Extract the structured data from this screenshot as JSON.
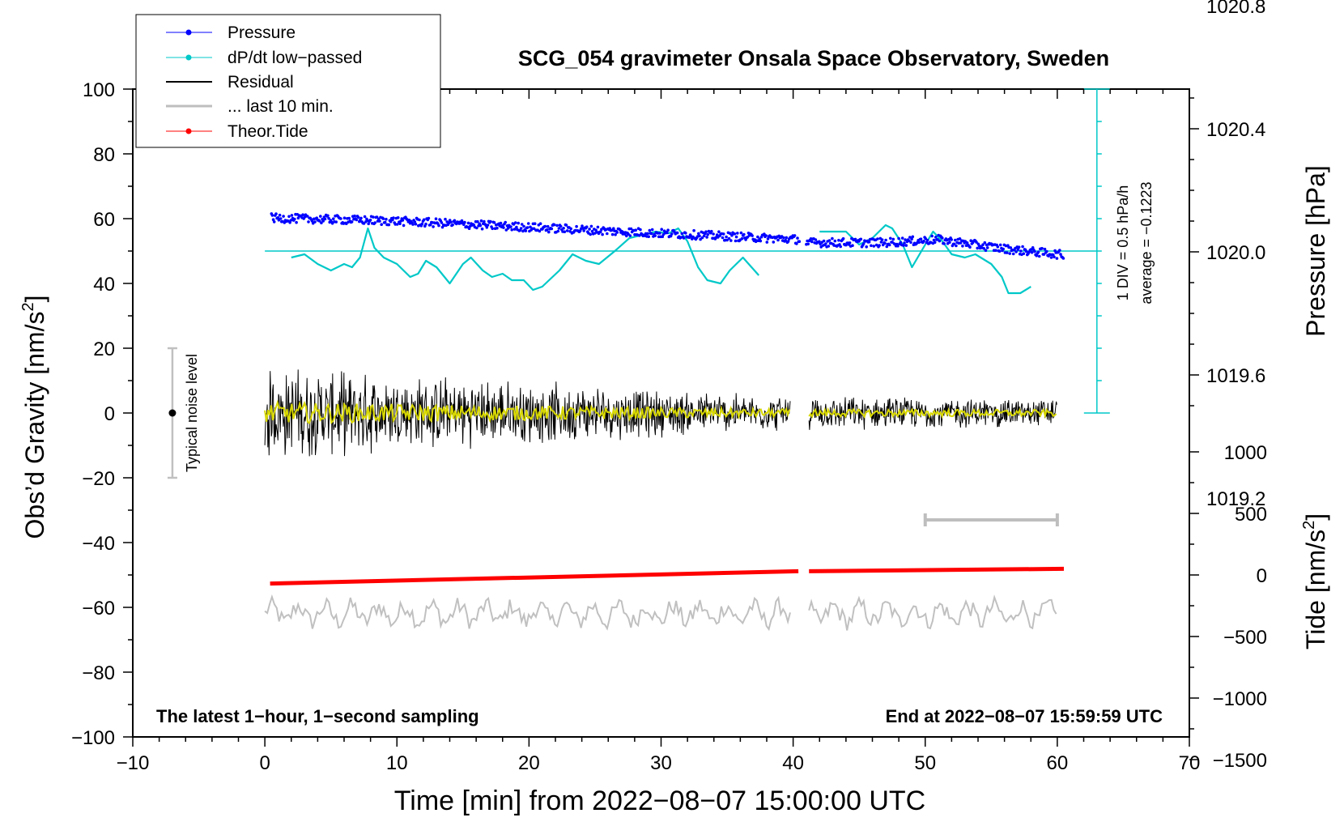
{
  "chart_data": {
    "type": "line",
    "title": "SCG_054 gravimeter Onsala Space Observatory, Sweden",
    "xlabel": "Time [min] from 2022−08−07 15:00:00 UTC",
    "ylabel_main": "Obs’d Gravity [nm/s",
    "ylabel_sup": "2",
    "ylabel_close": "]",
    "ylabel_pressure": "Pressure [hPa]",
    "ylabel_tide_main": "Tide [nm/s",
    "ylabel_tide_sup": "2",
    "ylabel_tide_close": "]",
    "xlim": [
      -10,
      70
    ],
    "ylim": [
      -100,
      100
    ],
    "pressure_range": [
      1019.2,
      1020.8
    ],
    "tide_range": [
      -1500,
      1000
    ],
    "x_ticks": [
      "−10",
      "0",
      "10",
      "20",
      "30",
      "40",
      "50",
      "60",
      "70"
    ],
    "y_ticks": [
      "−100",
      "−80",
      "−60",
      "−40",
      "−20",
      "0",
      "20",
      "40",
      "60",
      "80",
      "100"
    ],
    "pressure_ticks": [
      "1019.2",
      "1019.6",
      "1020.0",
      "1020.4",
      "1020.8"
    ],
    "tide_ticks": [
      "−1500",
      "−1000",
      "−500",
      "0",
      "500",
      "1000"
    ],
    "legend": [
      {
        "label": "Pressure",
        "color": "#0000ff",
        "marker": true
      },
      {
        "label": "dP/dt low−passed",
        "color": "#00c8c8",
        "marker": true
      },
      {
        "label": "Residual",
        "color": "#000000",
        "marker": false
      },
      {
        "label": "... last 10 min.",
        "color": "#bebebe",
        "marker": false
      },
      {
        "label": "Theor.Tide",
        "color": "#ff0000",
        "marker": true
      }
    ],
    "annotations": {
      "bottom_left": "The latest 1−hour, 1−second sampling",
      "bottom_right": "End at 2022−08−07 15:59:59 UTC",
      "scale_div": "1 DIV = 0.5 hPa/h",
      "scale_avg": "average = −0.1223",
      "noise": "Typical noise level"
    },
    "noise_bar": {
      "x": -7,
      "y": 0,
      "half_range": 20
    },
    "last10_bar": [
      50,
      60
    ],
    "series": [
      {
        "name": "Pressure",
        "axis": "pressure",
        "segments": [
          {
            "x": [
              0.5,
              10,
              20,
              30,
              40.5
            ],
            "y": [
              1020.11,
              1020.1,
              1020.08,
              1020.06,
              1020.04
            ]
          },
          {
            "x": [
              41,
              47,
              51,
              56,
              60.5
            ],
            "y": [
              1020.03,
              1020.03,
              1020.04,
              1020.01,
              1019.99
            ]
          }
        ]
      },
      {
        "name": "dP/dt low-passed",
        "axis": "gravity",
        "baseline": 50,
        "segments": [
          {
            "x": [
              2,
              3,
              4,
              5,
              6,
              6.6,
              7.2,
              7.8,
              8.3,
              9,
              10,
              11,
              11.6,
              12.2,
              13,
              14,
              15,
              15.6,
              16.5,
              17.2,
              18,
              18.7,
              19.6,
              20.3,
              21,
              22.3,
              23.3,
              24.3,
              25.3,
              26.5,
              27.6,
              28.6,
              29.6,
              30.6,
              31.3,
              32,
              32.8,
              33.5,
              34.5,
              35.2,
              36.2,
              37.4
            ],
            "y": [
              48,
              49,
              46,
              44,
              46,
              45,
              48,
              57,
              51,
              48,
              46,
              42,
              43,
              47,
              45,
              40,
              46,
              48,
              44,
              42,
              43,
              41,
              41,
              38,
              39,
              44,
              49,
              47,
              46,
              50,
              54,
              55,
              56,
              55.5,
              57,
              53,
              45,
              41,
              40,
              44,
              48,
              42.5
            ]
          },
          {
            "x": [
              42,
              44,
              45,
              46,
              47,
              47.5,
              48.3,
              49,
              50,
              50.6,
              51.3,
              52,
              53,
              53.8,
              55,
              55.8,
              56.3,
              57.2,
              58
            ],
            "y": [
              56,
              56,
              52,
              54,
              58,
              57,
              52,
              45,
              52,
              56,
              53,
              49,
              48,
              49,
              46,
              42,
              37,
              37,
              39
            ]
          }
        ]
      },
      {
        "name": "Residual",
        "axis": "gravity",
        "segments": [
          {
            "x_range": [
              0,
              39.8
            ],
            "amplitude_start": 11,
            "amplitude_end": 4
          },
          {
            "x_range": [
              41.2,
              60
            ],
            "amplitude_start": 4,
            "amplitude_end": 3.5
          }
        ]
      },
      {
        "name": "Residual smoothed",
        "axis": "gravity",
        "color": "#d8d800"
      },
      {
        "name": "... last 10 min.",
        "axis": "gravity",
        "offset": -62,
        "segments": [
          {
            "x_range": [
              0,
              39.8
            ]
          },
          {
            "x_range": [
              41.2,
              60
            ]
          }
        ]
      },
      {
        "name": "Theor.Tide",
        "axis": "tide",
        "segments": [
          {
            "x": [
              0.4,
              40.4
            ],
            "y": [
              -70,
              30
            ]
          },
          {
            "x": [
              41.2,
              60.5
            ],
            "y": [
              30,
              50
            ]
          }
        ]
      }
    ]
  }
}
